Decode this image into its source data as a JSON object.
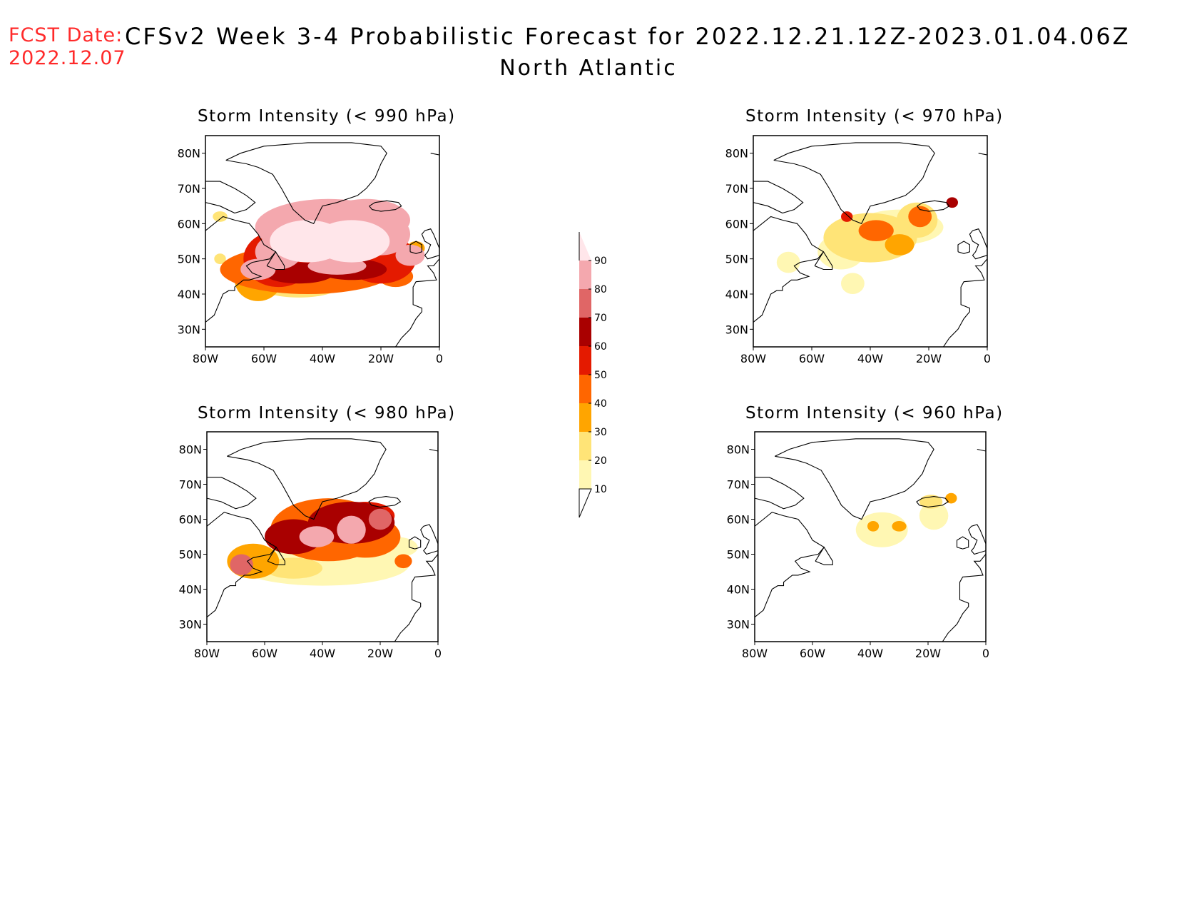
{
  "header": {
    "fcst_label": "FCST Date:",
    "fcst_date": "2022.12.07",
    "title": "CFSv2 Week 3-4 Probabilistic Forecast for 2022.12.21.12Z-2023.01.04.06Z",
    "subtitle": "North Atlantic"
  },
  "axes": {
    "lon_labels": [
      "80W",
      "60W",
      "40W",
      "20W",
      "0"
    ],
    "lat_labels": [
      "80N",
      "70N",
      "60N",
      "50N",
      "40N",
      "30N"
    ],
    "lon_range": [
      -80,
      0
    ],
    "lat_range": [
      25,
      85
    ]
  },
  "colorbar": {
    "levels": [
      "10",
      "20",
      "30",
      "40",
      "50",
      "60",
      "70",
      "80",
      "90"
    ],
    "colors": [
      "#fff7b3",
      "#ffe477",
      "#ffa500",
      "#ff6600",
      "#e41a00",
      "#a90000",
      "#e06666",
      "#f4a8ae",
      "#ffe6ea"
    ]
  },
  "panels": [
    {
      "id": "p990",
      "title": "Storm Intensity (< 990 hPa)"
    },
    {
      "id": "p970",
      "title": "Storm Intensity (< 970 hPa)"
    },
    {
      "id": "p980",
      "title": "Storm Intensity (< 980 hPa)"
    },
    {
      "id": "p960",
      "title": "Storm Intensity (< 960 hPa)"
    }
  ],
  "fields": {
    "p990": [
      {
        "lon": -45,
        "lat": 55,
        "ax": 13,
        "ay": 6,
        "value": 90
      },
      {
        "lon": -30,
        "lat": 55,
        "ax": 13,
        "ay": 6,
        "value": 90
      },
      {
        "lon": -20,
        "lat": 57,
        "ax": 10,
        "ay": 6,
        "value": 88
      },
      {
        "lon": -25,
        "lat": 61,
        "ax": 15,
        "ay": 6,
        "value": 88
      },
      {
        "lon": -55,
        "lat": 52,
        "ax": 8,
        "ay": 5,
        "value": 85
      },
      {
        "lon": -62,
        "lat": 47,
        "ax": 6,
        "ay": 3,
        "value": 80
      },
      {
        "lon": -10,
        "lat": 51,
        "ax": 5,
        "ay": 3,
        "value": 80
      },
      {
        "lon": -35,
        "lat": 48,
        "ax": 10,
        "ay": 2.5,
        "value": 80
      },
      {
        "lon": -48,
        "lat": 46,
        "ax": 12,
        "ay": 3,
        "value": 65
      },
      {
        "lon": -30,
        "lat": 47,
        "ax": 12,
        "ay": 3,
        "value": 60
      },
      {
        "lon": -55,
        "lat": 50,
        "ax": 12,
        "ay": 8,
        "value": 55
      },
      {
        "lon": -20,
        "lat": 50,
        "ax": 12,
        "ay": 7,
        "value": 55
      },
      {
        "lon": -45,
        "lat": 47,
        "ax": 30,
        "ay": 7,
        "value": 45
      },
      {
        "lon": -62,
        "lat": 44,
        "ax": 8,
        "ay": 6,
        "value": 35
      },
      {
        "lon": -48,
        "lat": 43,
        "ax": 15,
        "ay": 4,
        "value": 20
      },
      {
        "lon": -15,
        "lat": 45,
        "ax": 6,
        "ay": 3,
        "value": 40
      },
      {
        "lon": -38,
        "lat": 59,
        "ax": 25,
        "ay": 8,
        "value": 85
      },
      {
        "lon": -8,
        "lat": 53,
        "ax": 3,
        "ay": 2,
        "value": 30
      },
      {
        "lon": -75,
        "lat": 62,
        "ax": 2.5,
        "ay": 1.5,
        "value": 20
      },
      {
        "lon": -75,
        "lat": 50,
        "ax": 2,
        "ay": 1.5,
        "value": 25
      }
    ],
    "p980": [
      {
        "lon": -50,
        "lat": 55,
        "ax": 10,
        "ay": 5,
        "value": 60
      },
      {
        "lon": -30,
        "lat": 59,
        "ax": 15,
        "ay": 6,
        "value": 65
      },
      {
        "lon": -25,
        "lat": 61,
        "ax": 10,
        "ay": 4,
        "value": 55
      },
      {
        "lon": -42,
        "lat": 55,
        "ax": 6,
        "ay": 3,
        "value": 85
      },
      {
        "lon": -30,
        "lat": 57,
        "ax": 5,
        "ay": 4,
        "value": 80
      },
      {
        "lon": -20,
        "lat": 60,
        "ax": 4,
        "ay": 3,
        "value": 78
      },
      {
        "lon": -38,
        "lat": 57,
        "ax": 20,
        "ay": 9,
        "value": 45
      },
      {
        "lon": -25,
        "lat": 55,
        "ax": 12,
        "ay": 6,
        "value": 40
      },
      {
        "lon": -68,
        "lat": 47,
        "ax": 4,
        "ay": 3,
        "value": 70
      },
      {
        "lon": -64,
        "lat": 48,
        "ax": 9,
        "ay": 5,
        "value": 35
      },
      {
        "lon": -40,
        "lat": 47,
        "ax": 30,
        "ay": 6,
        "value": 15
      },
      {
        "lon": -15,
        "lat": 52,
        "ax": 8,
        "ay": 3,
        "value": 15
      },
      {
        "lon": -12,
        "lat": 48,
        "ax": 3,
        "ay": 2,
        "value": 40
      },
      {
        "lon": -50,
        "lat": 46,
        "ax": 10,
        "ay": 3,
        "value": 22
      }
    ],
    "p970": [
      {
        "lon": -40,
        "lat": 56,
        "ax": 16,
        "ay": 7,
        "value": 25
      },
      {
        "lon": -38,
        "lat": 58,
        "ax": 6,
        "ay": 3,
        "value": 42
      },
      {
        "lon": -30,
        "lat": 54,
        "ax": 5,
        "ay": 3,
        "value": 38
      },
      {
        "lon": -24,
        "lat": 61,
        "ax": 7,
        "ay": 5,
        "value": 25
      },
      {
        "lon": -23,
        "lat": 62,
        "ax": 4,
        "ay": 3,
        "value": 45
      },
      {
        "lon": -12,
        "lat": 66,
        "ax": 2,
        "ay": 1.5,
        "value": 65
      },
      {
        "lon": -30,
        "lat": 59,
        "ax": 15,
        "ay": 5,
        "value": 12
      },
      {
        "lon": -46,
        "lat": 43,
        "ax": 4,
        "ay": 3,
        "value": 15
      },
      {
        "lon": -68,
        "lat": 49,
        "ax": 4,
        "ay": 3,
        "value": 15
      },
      {
        "lon": -50,
        "lat": 52,
        "ax": 8,
        "ay": 5,
        "value": 15
      },
      {
        "lon": -48,
        "lat": 62,
        "ax": 2,
        "ay": 1.5,
        "value": 55
      }
    ],
    "p960": [
      {
        "lon": -36,
        "lat": 57,
        "ax": 9,
        "ay": 5,
        "value": 15
      },
      {
        "lon": -39,
        "lat": 58,
        "ax": 2,
        "ay": 1.5,
        "value": 35
      },
      {
        "lon": -30,
        "lat": 58,
        "ax": 2.5,
        "ay": 1.5,
        "value": 30
      },
      {
        "lon": -18,
        "lat": 61,
        "ax": 5,
        "ay": 4,
        "value": 15
      },
      {
        "lon": -12,
        "lat": 66,
        "ax": 2,
        "ay": 1.5,
        "value": 35
      },
      {
        "lon": -19,
        "lat": 65,
        "ax": 4,
        "ay": 2,
        "value": 20
      }
    ]
  }
}
